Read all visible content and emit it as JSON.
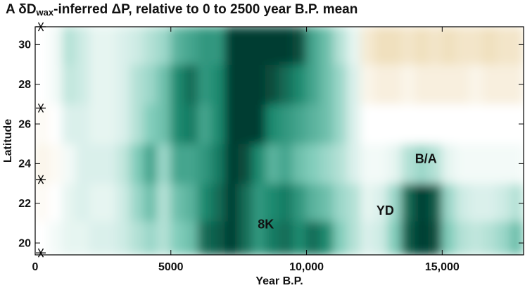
{
  "chart_data": {
    "type": "heatmap",
    "title": "A δD",
    "title_subscript": "wax",
    "title_rest": "-inferred ΔP, relative to 0 to 2500 year B.P. mean",
    "x_label": "Year B.P.",
    "y_label": "Latitude",
    "xlim": [
      0,
      18000
    ],
    "ylim": [
      19.4,
      30.9
    ],
    "xticks": [
      0,
      5000,
      {
        "value": 10000,
        "label": "10,000"
      },
      {
        "value": 15000,
        "label": "15,000"
      }
    ],
    "yticks": [
      20,
      22,
      24,
      26,
      28,
      30
    ],
    "x": [
      250,
      750,
      1250,
      1750,
      2250,
      2750,
      3250,
      3750,
      4250,
      4750,
      5250,
      5750,
      6250,
      6750,
      7250,
      7750,
      8250,
      8750,
      9250,
      9750,
      10250,
      10750,
      11250,
      11750,
      12250,
      12750,
      13250,
      13750,
      14250,
      14750,
      15250,
      15750,
      16250,
      16750,
      17250,
      17750
    ],
    "y": [
      20.2,
      22,
      24,
      26,
      28,
      30
    ],
    "zlim": [
      -1,
      3
    ],
    "colormap": [
      "#e6cb92",
      "#ffffff",
      "#82cdbb",
      "#1d8a70",
      "#063e30"
    ],
    "values": [
      [
        0,
        0.1,
        0.2,
        0.2,
        0.3,
        0.3,
        0.4,
        0.6,
        0.8,
        0.6,
        1,
        1.2,
        2.4,
        2.6,
        3,
        2.4,
        1.8,
        2.2,
        2.4,
        2,
        2.4,
        2,
        1,
        0.6,
        0.3,
        0.4,
        1,
        2.6,
        3,
        2.8,
        1,
        0.6,
        0.5,
        0.6,
        0.8,
        1.2
      ],
      [
        -0.1,
        0,
        0.2,
        0.3,
        0.2,
        0.2,
        0.4,
        0.8,
        1.2,
        0.6,
        1.2,
        1.4,
        2,
        2.4,
        3,
        2.4,
        1.8,
        2,
        2.2,
        1.8,
        1.4,
        1.2,
        0.8,
        0.6,
        0.2,
        0.3,
        0.8,
        2.4,
        3,
        2.6,
        0.8,
        0.4,
        0.3,
        0.3,
        0.4,
        0.6
      ],
      [
        -0.2,
        -0.1,
        0.1,
        0.3,
        0.3,
        0.3,
        0.5,
        1,
        1.6,
        0.8,
        1.6,
        1.6,
        1.8,
        2.2,
        3,
        2.8,
        2,
        1.4,
        1.6,
        1.2,
        1,
        0.8,
        0.6,
        0.3,
        0.1,
        0.1,
        0.2,
        0.6,
        0.8,
        0.6,
        0.2,
        0.1,
        0.1,
        0.1,
        0.1,
        0.1
      ],
      [
        -0.1,
        0,
        0.3,
        0.3,
        0.2,
        0.2,
        0.3,
        0.6,
        1,
        1.2,
        2,
        2.2,
        1.6,
        2,
        3,
        3,
        3,
        2,
        1.8,
        1.6,
        1.4,
        1.2,
        0.8,
        0.3,
        0,
        0,
        0,
        0,
        0,
        0,
        0,
        0,
        0,
        0,
        0,
        0
      ],
      [
        0,
        0.1,
        0.5,
        0.4,
        0.2,
        0.2,
        0.3,
        0.6,
        0.8,
        1.2,
        2,
        2.4,
        1.8,
        2,
        3,
        3,
        3,
        2.8,
        2.4,
        2,
        1.6,
        1.2,
        0.8,
        0.3,
        -0.2,
        -0.3,
        -0.3,
        -0.2,
        -0.3,
        -0.3,
        -0.3,
        -0.3,
        -0.2,
        -0.3,
        -0.3,
        -0.3
      ],
      [
        0,
        0.1,
        0.6,
        0.4,
        0.2,
        0.2,
        0.3,
        0.4,
        0.6,
        0.8,
        1.4,
        1.6,
        1.8,
        1.8,
        3,
        3,
        3,
        3,
        3,
        2.8,
        1.6,
        1.2,
        0.6,
        0.2,
        -0.4,
        -0.6,
        -0.6,
        -0.5,
        -0.6,
        -0.5,
        -0.6,
        -0.5,
        -0.5,
        -0.6,
        -0.5,
        -0.5
      ]
    ],
    "site_latitudes": [
      30.9,
      26.8,
      23.2,
      19.5
    ],
    "annotations": [
      {
        "text": "8K",
        "x": 8500,
        "y": 20.9
      },
      {
        "text": "YD",
        "x": 12900,
        "y": 21.6
      },
      {
        "text": "B/A",
        "x": 14400,
        "y": 24.2
      }
    ]
  }
}
